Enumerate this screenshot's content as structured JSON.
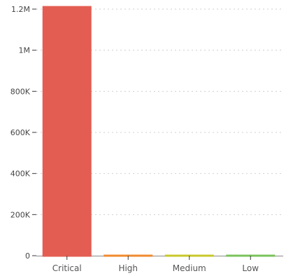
{
  "chart_data": {
    "type": "bar",
    "categories": [
      "Critical",
      "High",
      "Medium",
      "Low"
    ],
    "values": [
      1215000,
      0,
      0,
      0
    ],
    "ylim": [
      0,
      1200000
    ],
    "yticks": [
      0,
      200000,
      400000,
      600000,
      800000,
      1000000,
      1200000
    ],
    "ytick_labels": [
      "0",
      "200K",
      "400K",
      "600K",
      "800K",
      "1M",
      "1.2M"
    ],
    "grid": true,
    "legend": "none",
    "colors": {
      "Critical": "#e35d52",
      "High": "#f08a2e",
      "Medium": "#c8c82a",
      "Low": "#79c35b",
      "axis": "#3a3a3a",
      "grid": "#cfcfcf"
    }
  }
}
